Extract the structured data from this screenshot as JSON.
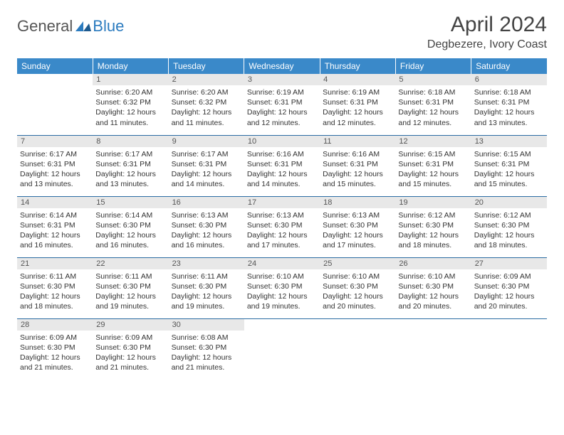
{
  "logo": {
    "general": "General",
    "blue": "Blue"
  },
  "title": "April 2024",
  "location": "Degbezere, Ivory Coast",
  "header_color": "#3a89c9",
  "divider_color": "#2b6ca3",
  "daynum_bg": "#e8e8e8",
  "weekdays": [
    "Sunday",
    "Monday",
    "Tuesday",
    "Wednesday",
    "Thursday",
    "Friday",
    "Saturday"
  ],
  "weeks": [
    [
      null,
      {
        "n": "1",
        "sr": "Sunrise: 6:20 AM",
        "ss": "Sunset: 6:32 PM",
        "d1": "Daylight: 12 hours",
        "d2": "and 11 minutes."
      },
      {
        "n": "2",
        "sr": "Sunrise: 6:20 AM",
        "ss": "Sunset: 6:32 PM",
        "d1": "Daylight: 12 hours",
        "d2": "and 11 minutes."
      },
      {
        "n": "3",
        "sr": "Sunrise: 6:19 AM",
        "ss": "Sunset: 6:31 PM",
        "d1": "Daylight: 12 hours",
        "d2": "and 12 minutes."
      },
      {
        "n": "4",
        "sr": "Sunrise: 6:19 AM",
        "ss": "Sunset: 6:31 PM",
        "d1": "Daylight: 12 hours",
        "d2": "and 12 minutes."
      },
      {
        "n": "5",
        "sr": "Sunrise: 6:18 AM",
        "ss": "Sunset: 6:31 PM",
        "d1": "Daylight: 12 hours",
        "d2": "and 12 minutes."
      },
      {
        "n": "6",
        "sr": "Sunrise: 6:18 AM",
        "ss": "Sunset: 6:31 PM",
        "d1": "Daylight: 12 hours",
        "d2": "and 13 minutes."
      }
    ],
    [
      {
        "n": "7",
        "sr": "Sunrise: 6:17 AM",
        "ss": "Sunset: 6:31 PM",
        "d1": "Daylight: 12 hours",
        "d2": "and 13 minutes."
      },
      {
        "n": "8",
        "sr": "Sunrise: 6:17 AM",
        "ss": "Sunset: 6:31 PM",
        "d1": "Daylight: 12 hours",
        "d2": "and 13 minutes."
      },
      {
        "n": "9",
        "sr": "Sunrise: 6:17 AM",
        "ss": "Sunset: 6:31 PM",
        "d1": "Daylight: 12 hours",
        "d2": "and 14 minutes."
      },
      {
        "n": "10",
        "sr": "Sunrise: 6:16 AM",
        "ss": "Sunset: 6:31 PM",
        "d1": "Daylight: 12 hours",
        "d2": "and 14 minutes."
      },
      {
        "n": "11",
        "sr": "Sunrise: 6:16 AM",
        "ss": "Sunset: 6:31 PM",
        "d1": "Daylight: 12 hours",
        "d2": "and 15 minutes."
      },
      {
        "n": "12",
        "sr": "Sunrise: 6:15 AM",
        "ss": "Sunset: 6:31 PM",
        "d1": "Daylight: 12 hours",
        "d2": "and 15 minutes."
      },
      {
        "n": "13",
        "sr": "Sunrise: 6:15 AM",
        "ss": "Sunset: 6:31 PM",
        "d1": "Daylight: 12 hours",
        "d2": "and 15 minutes."
      }
    ],
    [
      {
        "n": "14",
        "sr": "Sunrise: 6:14 AM",
        "ss": "Sunset: 6:31 PM",
        "d1": "Daylight: 12 hours",
        "d2": "and 16 minutes."
      },
      {
        "n": "15",
        "sr": "Sunrise: 6:14 AM",
        "ss": "Sunset: 6:30 PM",
        "d1": "Daylight: 12 hours",
        "d2": "and 16 minutes."
      },
      {
        "n": "16",
        "sr": "Sunrise: 6:13 AM",
        "ss": "Sunset: 6:30 PM",
        "d1": "Daylight: 12 hours",
        "d2": "and 16 minutes."
      },
      {
        "n": "17",
        "sr": "Sunrise: 6:13 AM",
        "ss": "Sunset: 6:30 PM",
        "d1": "Daylight: 12 hours",
        "d2": "and 17 minutes."
      },
      {
        "n": "18",
        "sr": "Sunrise: 6:13 AM",
        "ss": "Sunset: 6:30 PM",
        "d1": "Daylight: 12 hours",
        "d2": "and 17 minutes."
      },
      {
        "n": "19",
        "sr": "Sunrise: 6:12 AM",
        "ss": "Sunset: 6:30 PM",
        "d1": "Daylight: 12 hours",
        "d2": "and 18 minutes."
      },
      {
        "n": "20",
        "sr": "Sunrise: 6:12 AM",
        "ss": "Sunset: 6:30 PM",
        "d1": "Daylight: 12 hours",
        "d2": "and 18 minutes."
      }
    ],
    [
      {
        "n": "21",
        "sr": "Sunrise: 6:11 AM",
        "ss": "Sunset: 6:30 PM",
        "d1": "Daylight: 12 hours",
        "d2": "and 18 minutes."
      },
      {
        "n": "22",
        "sr": "Sunrise: 6:11 AM",
        "ss": "Sunset: 6:30 PM",
        "d1": "Daylight: 12 hours",
        "d2": "and 19 minutes."
      },
      {
        "n": "23",
        "sr": "Sunrise: 6:11 AM",
        "ss": "Sunset: 6:30 PM",
        "d1": "Daylight: 12 hours",
        "d2": "and 19 minutes."
      },
      {
        "n": "24",
        "sr": "Sunrise: 6:10 AM",
        "ss": "Sunset: 6:30 PM",
        "d1": "Daylight: 12 hours",
        "d2": "and 19 minutes."
      },
      {
        "n": "25",
        "sr": "Sunrise: 6:10 AM",
        "ss": "Sunset: 6:30 PM",
        "d1": "Daylight: 12 hours",
        "d2": "and 20 minutes."
      },
      {
        "n": "26",
        "sr": "Sunrise: 6:10 AM",
        "ss": "Sunset: 6:30 PM",
        "d1": "Daylight: 12 hours",
        "d2": "and 20 minutes."
      },
      {
        "n": "27",
        "sr": "Sunrise: 6:09 AM",
        "ss": "Sunset: 6:30 PM",
        "d1": "Daylight: 12 hours",
        "d2": "and 20 minutes."
      }
    ],
    [
      {
        "n": "28",
        "sr": "Sunrise: 6:09 AM",
        "ss": "Sunset: 6:30 PM",
        "d1": "Daylight: 12 hours",
        "d2": "and 21 minutes."
      },
      {
        "n": "29",
        "sr": "Sunrise: 6:09 AM",
        "ss": "Sunset: 6:30 PM",
        "d1": "Daylight: 12 hours",
        "d2": "and 21 minutes."
      },
      {
        "n": "30",
        "sr": "Sunrise: 6:08 AM",
        "ss": "Sunset: 6:30 PM",
        "d1": "Daylight: 12 hours",
        "d2": "and 21 minutes."
      },
      null,
      null,
      null,
      null
    ]
  ]
}
